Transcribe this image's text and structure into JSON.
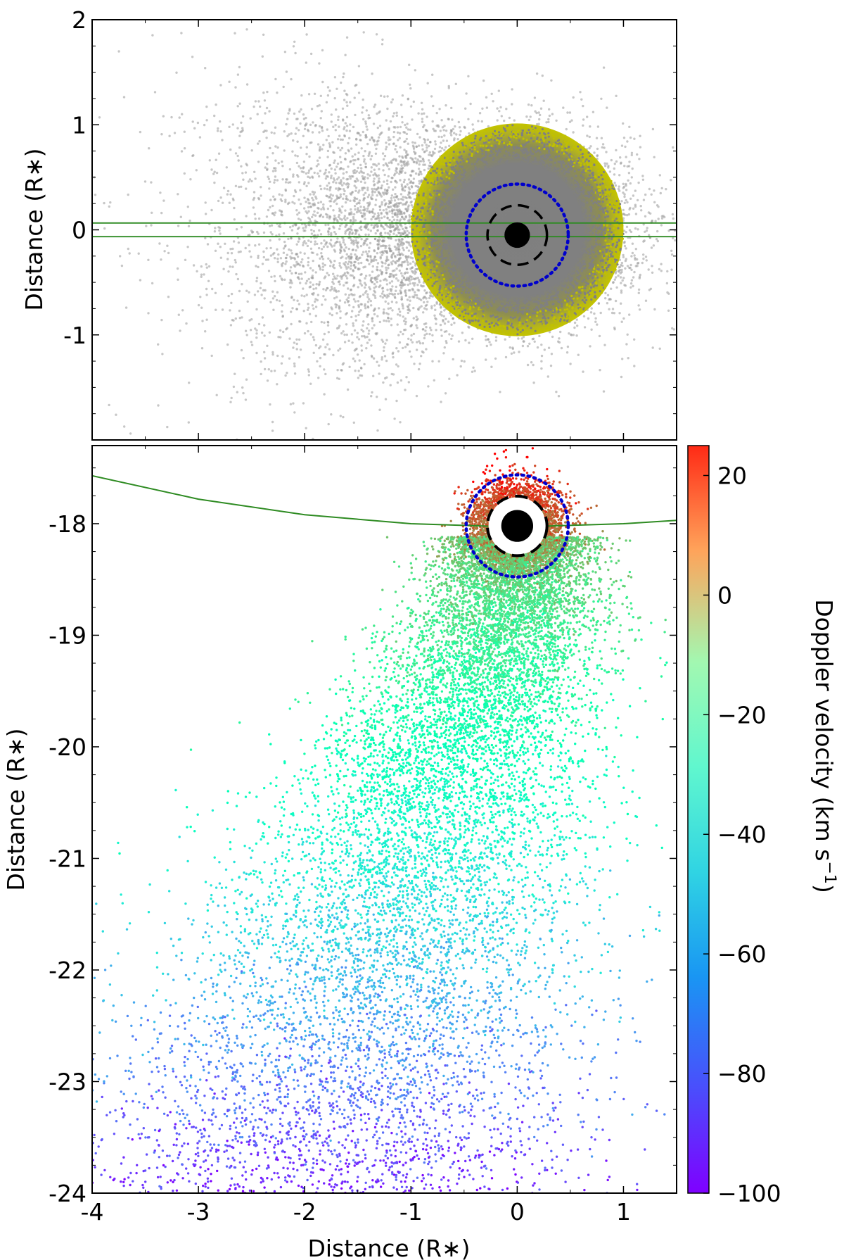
{
  "chart_data": [
    {
      "type": "scatter",
      "panel": "top",
      "title": "",
      "xlabel": "",
      "ylabel": "Distance (R∗)",
      "xlim": [
        -4,
        1.5
      ],
      "ylim": [
        -2,
        2
      ],
      "xticks": [
        -4,
        -3,
        -2,
        -1,
        0,
        1
      ],
      "yticks": [
        -1,
        0,
        1,
        2
      ],
      "ytick_labels": [
        "-1",
        "0",
        "1",
        "2"
      ],
      "grid": false,
      "stellar_disk": {
        "center": [
          0,
          0
        ],
        "radius": 1.0,
        "edge_color": "#c0c000",
        "core_color": "#7f7f7f"
      },
      "planet": {
        "center": [
          0,
          -0.05
        ],
        "radius": 0.12,
        "color": "#000000"
      },
      "circles": [
        {
          "style": "dashed",
          "color": "#000000",
          "center": [
            0,
            -0.05
          ],
          "radius": 0.28
        },
        {
          "style": "dotted",
          "color": "#0000cc",
          "center": [
            0,
            -0.05
          ],
          "radius": 0.48
        }
      ],
      "transit_chord": {
        "color": "#2e8b22",
        "y_upper": 0.065,
        "y_lower": -0.065
      },
      "particles": {
        "color": "#999999",
        "count_drawn": 9000,
        "center": [
          -0.3,
          0.0
        ],
        "spread_x": 0.9,
        "spread_y": 0.45
      }
    },
    {
      "type": "scatter",
      "panel": "bottom",
      "title": "",
      "xlabel": "Distance (R∗)",
      "ylabel": "Distance (R∗)",
      "xlim": [
        -4,
        1.5
      ],
      "ylim": [
        -24,
        -17.3
      ],
      "xticks": [
        -4,
        -3,
        -2,
        -1,
        0,
        1
      ],
      "xtick_labels": [
        "-4",
        "-3",
        "-2",
        "-1",
        "0",
        "1"
      ],
      "yticks": [
        -24,
        -23,
        -22,
        -21,
        -20,
        -19,
        -18
      ],
      "ytick_labels": [
        "-24",
        "-23",
        "-22",
        "-21",
        "-20",
        "-19",
        "-18"
      ],
      "grid": false,
      "planet": {
        "center": [
          0,
          -18.02
        ],
        "radius": 0.15,
        "color": "#000000"
      },
      "circles": [
        {
          "style": "dashed",
          "color": "#000000",
          "center": [
            0,
            -18.02
          ],
          "radius": 0.28
        },
        {
          "style": "dotted",
          "color": "#0000cc",
          "center": [
            0,
            -18.02
          ],
          "radius": 0.48
        }
      ],
      "orbit_curve": {
        "color": "#2e8b22",
        "points": [
          [
            -4,
            -17.57
          ],
          [
            -3,
            -17.78
          ],
          [
            -2,
            -17.92
          ],
          [
            -1,
            -18.0
          ],
          [
            0,
            -18.03
          ],
          [
            1,
            -18.0
          ],
          [
            1.5,
            -17.97
          ]
        ]
      },
      "particles": {
        "count_drawn": 15000,
        "colored_by": "Doppler velocity"
      },
      "colorbar": {
        "label": "Doppler velocity (km s⁻¹)",
        "label_main": "Doppler velocity (km s",
        "label_sup": "−1",
        "label_close": ")",
        "range": [
          -100,
          25
        ],
        "ticks": [
          20,
          0,
          -20,
          -40,
          -60,
          -80,
          -100
        ],
        "tick_labels": [
          "20",
          "0",
          "−20",
          "−40",
          "−60",
          "−80",
          "−100"
        ],
        "colormap": "rainbow"
      }
    }
  ]
}
